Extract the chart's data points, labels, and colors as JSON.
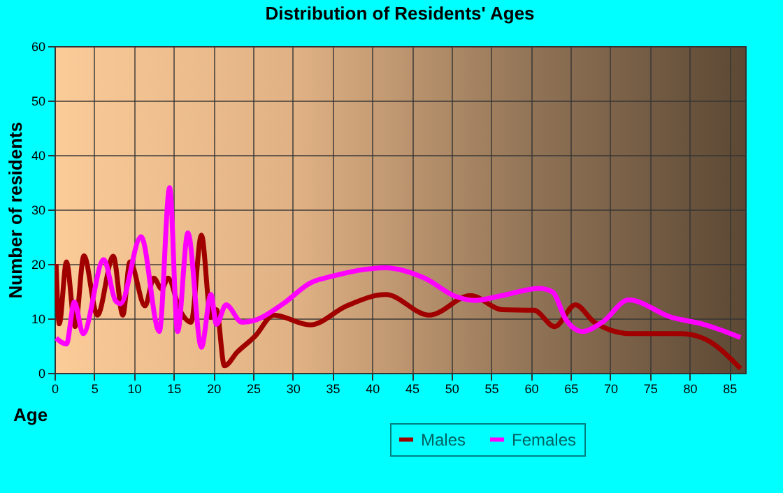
{
  "chart_data": {
    "type": "line",
    "title": "Distribution of Residents' Ages",
    "xlabel": "Age",
    "ylabel": "Number of residents",
    "xlim": [
      0,
      87
    ],
    "xticks": [
      0,
      5,
      10,
      15,
      20,
      25,
      30,
      35,
      40,
      45,
      50,
      55,
      60,
      65,
      70,
      75,
      80,
      85
    ],
    "ylim": [
      0,
      60
    ],
    "yticks": [
      0,
      10,
      20,
      30,
      40,
      50,
      60
    ],
    "grid": true,
    "legend": "bottom right",
    "series": [
      {
        "name": "Males",
        "color": "#a00000",
        "x": [
          0.2,
          0.6,
          1.5,
          2.6,
          3.7,
          5.4,
          7.4,
          8.6,
          9.5,
          11.4,
          12.5,
          13.5,
          14.3,
          15.8,
          17.2,
          18.5,
          19.7,
          20.4,
          21.4,
          23,
          25.3,
          27.6,
          32.2,
          36.8,
          41.7,
          47.2,
          52.4,
          56.4,
          60.4,
          63,
          65.6,
          68,
          72.6,
          78.9,
          81.8,
          86.4
        ],
        "values": [
          20,
          9,
          20.4,
          8.5,
          21.5,
          10.6,
          21.4,
          10.6,
          20.4,
          12.3,
          17.4,
          15.4,
          17.4,
          11.5,
          9.3,
          25.3,
          10.2,
          11.6,
          1.3,
          3.8,
          6.8,
          10.6,
          8.8,
          12.3,
          14.4,
          10.6,
          14.2,
          11.6,
          11.5,
          8.5,
          12.5,
          9.3,
          7.2,
          7.2,
          6.3,
          0.8
        ]
      },
      {
        "name": "Females",
        "color": "#ff00ff",
        "x": [
          0.2,
          1.5,
          2.5,
          3.6,
          6.2,
          7.7,
          8.3,
          10.9,
          13.2,
          14.5,
          15.5,
          16.8,
          18.5,
          19.7,
          20.4,
          21.6,
          23.6,
          25.3,
          28.8,
          32.2,
          35.1,
          41.7,
          46.6,
          50.6,
          52.9,
          56.4,
          61,
          62.7,
          64.4,
          66.5,
          69,
          72.3,
          77.7,
          81.8,
          86.4
        ],
        "values": [
          6.4,
          5.3,
          13,
          7.2,
          20.8,
          13.2,
          12.7,
          25,
          7.6,
          34,
          7.6,
          25.7,
          4.7,
          14.4,
          8.9,
          12.5,
          9.3,
          9.7,
          12.7,
          16.5,
          17.8,
          19.3,
          17.4,
          14,
          13.3,
          14.2,
          15.5,
          14.9,
          9.8,
          7.6,
          9.3,
          13.4,
          10.2,
          8.9,
          6.5
        ]
      }
    ]
  }
}
